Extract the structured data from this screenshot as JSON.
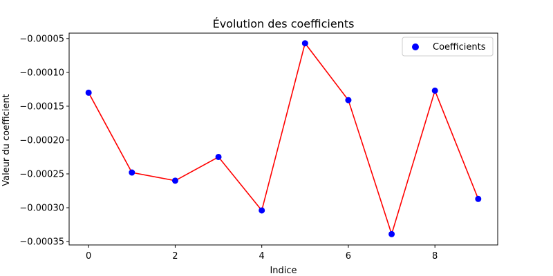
{
  "chart_data": {
    "type": "scatter",
    "title": "Évolution des coefficients",
    "xlabel": "Indice",
    "ylabel": "Valeur du coefficient",
    "x": [
      0,
      1,
      2,
      3,
      4,
      5,
      6,
      7,
      8,
      9
    ],
    "series": [
      {
        "name": "Coefficients",
        "marker_color": "#0000ff",
        "line_color": "#ff0000",
        "values": [
          -0.00013,
          -0.000248,
          -0.00026,
          -0.000225,
          -0.000304,
          -5.7e-05,
          -0.000141,
          -0.000339,
          -0.000127,
          -0.000287
        ]
      }
    ],
    "xlim": [
      -0.45,
      9.45
    ],
    "ylim": [
      -0.000355,
      -4.2e-05
    ],
    "xticks": [
      0,
      2,
      4,
      6,
      8
    ],
    "xtick_labels": [
      "0",
      "2",
      "4",
      "6",
      "8"
    ],
    "yticks": [
      -5e-05,
      -0.0001,
      -0.00015,
      -0.0002,
      -0.00025,
      -0.0003,
      -0.00035
    ],
    "ytick_labels": [
      "−0.00005",
      "−0.00010",
      "−0.00015",
      "−0.00020",
      "−0.00025",
      "−0.00030",
      "−0.00035"
    ],
    "grid": false,
    "legend_position": "upper-right"
  }
}
